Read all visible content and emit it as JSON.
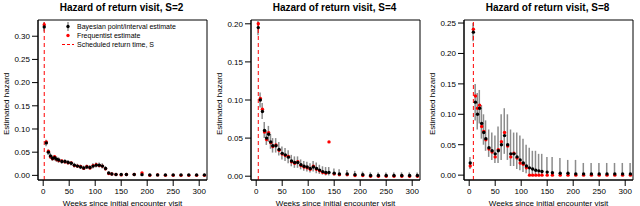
{
  "chart_data": [
    {
      "type": "scatter",
      "title": "Hazard of return visit, S=2",
      "x_label": "Weeks since initial encounter visit",
      "y_label": "Estimated hazard",
      "xlim": [
        -10,
        315
      ],
      "xticks": [
        0,
        50,
        100,
        150,
        200,
        250,
        300
      ],
      "ylim": [
        -0.01,
        0.335
      ],
      "yticks": [
        {
          "value": 0,
          "label": "0.00"
        },
        {
          "value": 0.05,
          "label": "0.05"
        },
        {
          "value": 0.1,
          "label": "0.10"
        },
        {
          "value": 0.15,
          "label": "0.15"
        },
        {
          "value": 0.2,
          "label": "0.20"
        },
        {
          "value": 0.25,
          "label": "0.25"
        },
        {
          "value": 0.3,
          "label": "0.30"
        }
      ],
      "legend": "top",
      "reference_line": {
        "x": 2,
        "label": "Scheduled return time, S",
        "color": "#ff0000",
        "line_style": "dashed"
      },
      "x": [
        2,
        6,
        10,
        14,
        18,
        22,
        26,
        30,
        36,
        42,
        48,
        54,
        60,
        66,
        72,
        78,
        84,
        90,
        96,
        102,
        108,
        114,
        120,
        126,
        132,
        140,
        150,
        160,
        175,
        190,
        205,
        220,
        235,
        250,
        265,
        280,
        295,
        310
      ],
      "series": [
        {
          "name": "Bayesian point/interval estimate",
          "color": "#000000",
          "marker": "circle",
          "values": [
            0.32,
            0.07,
            0.05,
            0.042,
            0.037,
            0.038,
            0.035,
            0.033,
            0.03,
            0.03,
            0.028,
            0.026,
            0.022,
            0.02,
            0.018,
            0.016,
            0.018,
            0.017,
            0.02,
            0.022,
            0.022,
            0.02,
            0.015,
            0.005,
            0.003,
            0.002,
            0.002,
            0.002,
            0.002,
            0.0015,
            0.001,
            0.001,
            0.001,
            0.001,
            0.001,
            0.001,
            0.001,
            0.001
          ],
          "lower": [
            0.31,
            0.063,
            0.044,
            0.036,
            0.031,
            0.032,
            0.029,
            0.027,
            0.025,
            0.025,
            0.023,
            0.021,
            0.017,
            0.016,
            0.014,
            0.012,
            0.014,
            0.013,
            0.015,
            0.017,
            0.017,
            0.015,
            0.01,
            0.002,
            0.001,
            0,
            0,
            0,
            0,
            0,
            0,
            0,
            0,
            0,
            0,
            0,
            0,
            0
          ],
          "upper": [
            0.33,
            0.077,
            0.056,
            0.048,
            0.043,
            0.044,
            0.041,
            0.039,
            0.035,
            0.035,
            0.033,
            0.031,
            0.027,
            0.025,
            0.023,
            0.021,
            0.023,
            0.022,
            0.026,
            0.028,
            0.028,
            0.026,
            0.02,
            0.008,
            0.006,
            0.005,
            0.005,
            0.004,
            0.004,
            0.004,
            0.003,
            0.003,
            0.003,
            0.003,
            0.003,
            0.003,
            0.003,
            0.003
          ]
        },
        {
          "name": "Frequentist estimate",
          "color": "#ff0000",
          "marker": "circle",
          "values": [
            0.325,
            0.072,
            0.052,
            0.04,
            0.036,
            0.04,
            0.034,
            0.032,
            0.031,
            0.029,
            0.027,
            0.027,
            0.021,
            0.02,
            0.019,
            0.015,
            0.019,
            0.016,
            0.021,
            0.023,
            0.021,
            0.02,
            0.014,
            0.004,
            0.003,
            0.002,
            0.001,
            0.002,
            0.002,
            0.005,
            0,
            0.001,
            0,
            0,
            0,
            0,
            0,
            0
          ]
        }
      ]
    },
    {
      "type": "scatter",
      "title": "Hazard of return visit, S=4",
      "x_label": "Weeks since initial encounter visit",
      "y_label": "Estimated hazard",
      "xlim": [
        -10,
        315
      ],
      "xticks": [
        0,
        50,
        100,
        150,
        200,
        250,
        300
      ],
      "ylim": [
        -0.005,
        0.205
      ],
      "yticks": [
        {
          "value": 0,
          "label": "0.00"
        },
        {
          "value": 0.05,
          "label": "0.05"
        },
        {
          "value": 0.1,
          "label": "0.10"
        },
        {
          "value": 0.15,
          "label": "0.15"
        },
        {
          "value": 0.2,
          "label": "0.20"
        }
      ],
      "reference_line": {
        "x": 4,
        "color": "#ff0000",
        "line_style": "dashed"
      },
      "x": [
        4,
        8,
        12,
        16,
        20,
        24,
        28,
        32,
        38,
        44,
        50,
        56,
        62,
        68,
        74,
        80,
        86,
        92,
        98,
        104,
        110,
        116,
        122,
        128,
        134,
        140,
        150,
        160,
        175,
        190,
        205,
        220,
        235,
        250,
        265,
        280,
        295,
        310
      ],
      "series": [
        {
          "color": "#000000",
          "marker": "circle",
          "values": [
            0.195,
            0.1,
            0.085,
            0.06,
            0.05,
            0.055,
            0.045,
            0.04,
            0.04,
            0.035,
            0.03,
            0.028,
            0.025,
            0.02,
            0.018,
            0.018,
            0.015,
            0.013,
            0.012,
            0.01,
            0.012,
            0.01,
            0.008,
            0.006,
            0.005,
            0.005,
            0.004,
            0.003,
            0.003,
            0.002,
            0.002,
            0.001,
            0.001,
            0.001,
            0.001,
            0.001,
            0.001,
            0.001
          ],
          "lower": [
            0.185,
            0.09,
            0.075,
            0.05,
            0.041,
            0.045,
            0.036,
            0.031,
            0.031,
            0.027,
            0.022,
            0.02,
            0.017,
            0.013,
            0.011,
            0.011,
            0.009,
            0.007,
            0.006,
            0.005,
            0.006,
            0.004,
            0.003,
            0.002,
            0.001,
            0.001,
            0.001,
            0,
            0,
            0,
            0,
            0,
            0,
            0,
            0,
            0,
            0,
            0
          ],
          "upper": [
            0.205,
            0.11,
            0.096,
            0.071,
            0.06,
            0.066,
            0.055,
            0.05,
            0.05,
            0.045,
            0.039,
            0.037,
            0.034,
            0.028,
            0.026,
            0.026,
            0.022,
            0.02,
            0.019,
            0.017,
            0.02,
            0.018,
            0.015,
            0.013,
            0.012,
            0.012,
            0.01,
            0.009,
            0.008,
            0.007,
            0.006,
            0.005,
            0.005,
            0.005,
            0.005,
            0.005,
            0.005,
            0.005
          ]
        },
        {
          "color": "#ff0000",
          "marker": "circle",
          "values": [
            0.2,
            0.102,
            0.088,
            0.058,
            0.048,
            0.057,
            0.044,
            0.039,
            0.041,
            0.034,
            0.029,
            0.027,
            0.026,
            0.019,
            0.017,
            0.019,
            0.014,
            0.012,
            0.011,
            0.009,
            0.013,
            0.009,
            0.007,
            0.005,
            0.004,
            0.045,
            0.003,
            0.002,
            0.002,
            0.001,
            0.001,
            0,
            0,
            0,
            0,
            0,
            0,
            0
          ]
        }
      ]
    },
    {
      "type": "scatter",
      "title": "Hazard of return visit, S=8",
      "x_label": "Weeks since initial encounter visit",
      "y_label": "Estimated hazard",
      "xlim": [
        -10,
        315
      ],
      "xticks": [
        0,
        50,
        100,
        150,
        200,
        250,
        300
      ],
      "ylim": [
        -0.008,
        0.255
      ],
      "yticks": [
        {
          "value": 0,
          "label": "0.00"
        },
        {
          "value": 0.05,
          "label": "0.05"
        },
        {
          "value": 0.1,
          "label": "0.10"
        },
        {
          "value": 0.15,
          "label": "0.15"
        },
        {
          "value": 0.2,
          "label": "0.20"
        },
        {
          "value": 0.25,
          "label": "0.25"
        }
      ],
      "reference_line": {
        "x": 8,
        "color": "#ff0000",
        "line_style": "dashed"
      },
      "x": [
        2,
        8,
        12,
        16,
        20,
        24,
        28,
        32,
        38,
        44,
        50,
        56,
        62,
        68,
        74,
        80,
        86,
        92,
        98,
        104,
        110,
        116,
        122,
        128,
        134,
        140,
        150,
        160,
        175,
        190,
        205,
        220,
        235,
        250,
        265,
        280,
        295,
        310
      ],
      "series": [
        {
          "color": "#000000",
          "marker": "circle",
          "values": [
            0.02,
            0.235,
            0.12,
            0.1,
            0.11,
            0.085,
            0.07,
            0.06,
            0.045,
            0.04,
            0.035,
            0.04,
            0.05,
            0.065,
            0.05,
            0.035,
            0.035,
            0.03,
            0.025,
            0.02,
            0.015,
            0.012,
            0.01,
            0.008,
            0.007,
            0.006,
            0.005,
            0.004,
            0.003,
            0.003,
            0.002,
            0.002,
            0.002,
            0.002,
            0.002,
            0.002,
            0.002,
            0.002
          ],
          "lower": [
            0.01,
            0.22,
            0.09,
            0.075,
            0.085,
            0.06,
            0.05,
            0.04,
            0.03,
            0.025,
            0.02,
            0.02,
            0.025,
            0.035,
            0.025,
            0.015,
            0.015,
            0.01,
            0.008,
            0.005,
            0.003,
            0.002,
            0.001,
            0.001,
            0.001,
            0.001,
            0,
            0,
            0,
            0,
            0,
            0,
            0,
            0,
            0,
            0,
            0,
            0
          ],
          "upper": [
            0.03,
            0.25,
            0.15,
            0.135,
            0.14,
            0.115,
            0.1,
            0.09,
            0.075,
            0.07,
            0.065,
            0.08,
            0.1,
            0.11,
            0.1,
            0.075,
            0.07,
            0.07,
            0.065,
            0.06,
            0.05,
            0.045,
            0.04,
            0.04,
            0.035,
            0.035,
            0.03,
            0.03,
            0.028,
            0.025,
            0.025,
            0.02,
            0.02,
            0.02,
            0.02,
            0.02,
            0.02,
            0.02
          ]
        },
        {
          "color": "#ff0000",
          "marker": "circle",
          "values": [
            0.015,
            0.24,
            0.13,
            0.11,
            0.115,
            0.08,
            0.072,
            0.058,
            0.043,
            0.038,
            0.03,
            0.042,
            0.055,
            0.07,
            0.048,
            0.03,
            0.036,
            0.028,
            0.02,
            0.018,
            0.012,
            0,
            0,
            0,
            0,
            0,
            0,
            0,
            0,
            0,
            0,
            0,
            0,
            0,
            0,
            0,
            0,
            0
          ]
        }
      ]
    }
  ]
}
